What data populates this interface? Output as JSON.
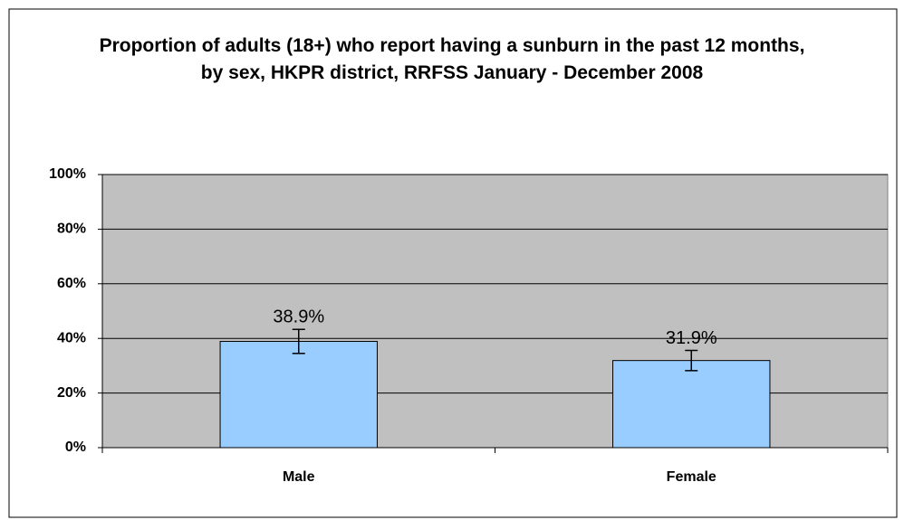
{
  "chart_data": {
    "type": "bar",
    "title": "Proportion of adults (18+) who report having a sunburn in the past 12 months, by sex, HKPR district, RRFSS January - December 2008",
    "categories": [
      "Male",
      "Female"
    ],
    "values": [
      38.9,
      31.9
    ],
    "value_labels": [
      "38.9%",
      "31.9%"
    ],
    "errors": [
      4.4,
      3.7
    ],
    "color": "#99ccff",
    "ylim": [
      0,
      100
    ],
    "yticks": [
      {
        "value": 0,
        "label": "0%"
      },
      {
        "value": 20,
        "label": "20%"
      },
      {
        "value": 40,
        "label": "40%"
      },
      {
        "value": 60,
        "label": "60%"
      },
      {
        "value": 80,
        "label": "80%"
      },
      {
        "value": 100,
        "label": "100%"
      }
    ],
    "grid": true
  }
}
